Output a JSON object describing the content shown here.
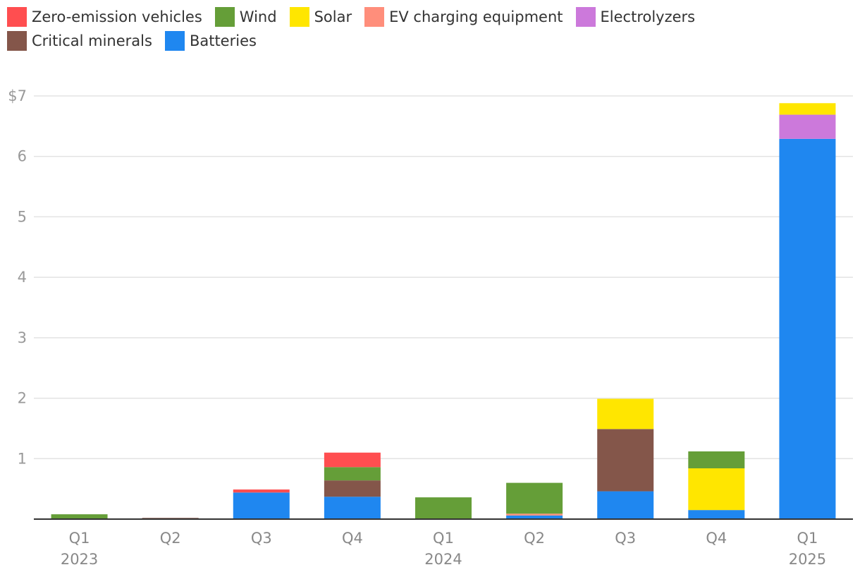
{
  "chart_data": {
    "type": "bar",
    "stacked": true,
    "categories": [
      "Q1",
      "Q2",
      "Q3",
      "Q4",
      "Q1",
      "Q2",
      "Q3",
      "Q4",
      "Q1"
    ],
    "year_labels": [
      "2023",
      "",
      "",
      "",
      "2024",
      "",
      "",
      "",
      "2025"
    ],
    "y_ticks": [
      "$7",
      "6",
      "5",
      "4",
      "3",
      "2",
      "1"
    ],
    "ylim": [
      0,
      7
    ],
    "grid": true,
    "legend_position": "top",
    "series": [
      {
        "name": "Batteries",
        "color": "#1f87f0",
        "values": [
          0,
          0,
          0.44,
          0.37,
          0,
          0.06,
          0.46,
          0.15,
          6.29
        ]
      },
      {
        "name": "Critical minerals",
        "color": "#84564a",
        "values": [
          0,
          0.02,
          0,
          0.27,
          0,
          0,
          1.03,
          0,
          0
        ]
      },
      {
        "name": "EV charging equipment",
        "color": "#ff8e7b",
        "values": [
          0,
          0,
          0,
          0,
          0,
          0.03,
          0,
          0,
          0
        ]
      },
      {
        "name": "Electrolyzers",
        "color": "#cc79db",
        "values": [
          0,
          0,
          0,
          0,
          0,
          0,
          0,
          0,
          0.4
        ]
      },
      {
        "name": "Solar",
        "color": "#ffe600",
        "values": [
          0,
          0,
          0,
          0,
          0,
          0,
          0.5,
          0.69,
          0.19
        ]
      },
      {
        "name": "Wind",
        "color": "#659e38",
        "values": [
          0.08,
          0,
          0,
          0.22,
          0.36,
          0.51,
          0,
          0.28,
          0
        ]
      },
      {
        "name": "Zero-emission vehicles",
        "color": "#ff4e50",
        "values": [
          0,
          0,
          0.05,
          0.24,
          0,
          0,
          0,
          0,
          0
        ]
      }
    ]
  },
  "legend": [
    {
      "label": "Zero-emission vehicles",
      "color": "#ff4e50"
    },
    {
      "label": "Wind",
      "color": "#659e38"
    },
    {
      "label": "Solar",
      "color": "#ffe600"
    },
    {
      "label": "EV charging equipment",
      "color": "#ff8e7b"
    },
    {
      "label": "Electrolyzers",
      "color": "#cc79db"
    },
    {
      "label": "Critical minerals",
      "color": "#84564a"
    },
    {
      "label": "Batteries",
      "color": "#1f87f0"
    }
  ]
}
